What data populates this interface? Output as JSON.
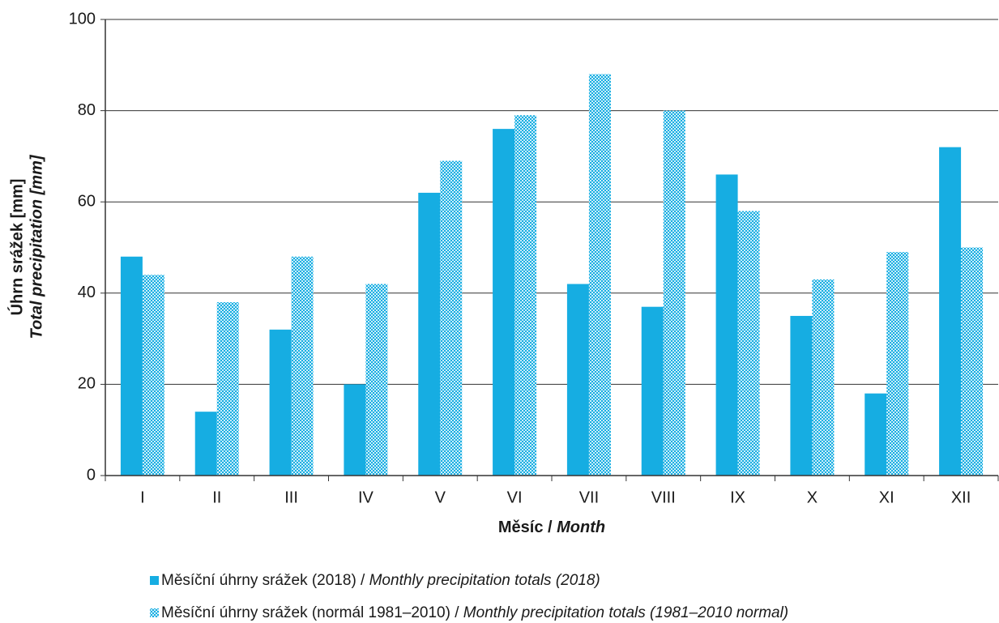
{
  "chart_data": {
    "type": "bar",
    "ylabel": [
      "Úhrn srážek  [mm]",
      "Total precipitation [mm]"
    ],
    "xlabel": "Měsíc / Month",
    "categories": [
      "I",
      "II",
      "III",
      "IV",
      "V",
      "VI",
      "VII",
      "VIII",
      "IX",
      "X",
      "XI",
      "XII"
    ],
    "series": [
      {
        "name": "Měsíční úhrny srážek (2018) / Monthly precipitation totals (2018)",
        "color": "#16ade2",
        "values": [
          48,
          14,
          32,
          20,
          62,
          76,
          42,
          37,
          66,
          35,
          18,
          72
        ]
      },
      {
        "name": "Měsíční úhrny srážek (normál 1981–2010) / Monthly precipitation totals (1981–2010 normal)",
        "color": "#16ade2",
        "pattern": "checker",
        "values": [
          44,
          38,
          48,
          42,
          69,
          79,
          88,
          80,
          58,
          43,
          49,
          50
        ]
      }
    ],
    "ylim": [
      0,
      100
    ],
    "yticks": [
      0,
      20,
      40,
      60,
      80,
      100
    ],
    "grid": true
  }
}
